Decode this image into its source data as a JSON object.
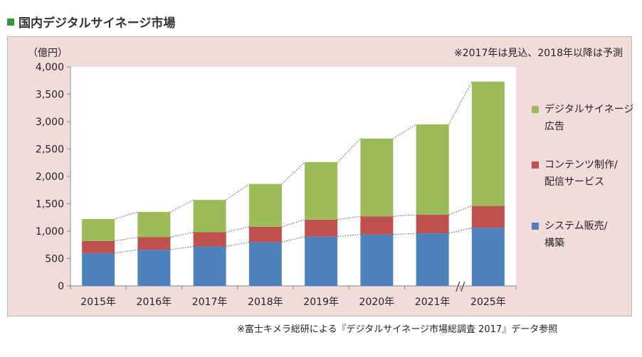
{
  "title": "国内デジタルサイネージ市場",
  "footnote": "※富士キメラ総研による『デジタルサイネージ市場総調査 2017』データ参照",
  "colors": {
    "title_square": "#2e9b3e",
    "panel_bg": "#f2dcdb",
    "plot_bg": "#ffffff",
    "series": [
      "#4f81bd",
      "#c0504d",
      "#9bbb59"
    ]
  },
  "chart_data": {
    "type": "bar",
    "stacked": true,
    "title": "",
    "unit_label": "（億円）",
    "note": "※2017年は見込、2018年以降は予測",
    "categories": [
      "2015年",
      "2016年",
      "2017年",
      "2018年",
      "2019年",
      "2020年",
      "2021年",
      "2025年"
    ],
    "axis_break_between": [
      "2021年",
      "2025年"
    ],
    "ylim": [
      0,
      4000
    ],
    "yticks": [
      0,
      500,
      1000,
      1500,
      2000,
      2500,
      3000,
      3500,
      4000
    ],
    "ytick_labels": [
      "0",
      "500",
      "1,000",
      "1,500",
      "2,000",
      "2,500",
      "3,000",
      "3,500",
      "4,000"
    ],
    "grid": false,
    "legend_position": "right",
    "series": [
      {
        "name_lines": [
          "システム販売/",
          "構築"
        ],
        "color": "#4f81bd",
        "values": [
          600,
          660,
          720,
          800,
          900,
          940,
          960,
          1060
        ]
      },
      {
        "name_lines": [
          "コンテンツ制作/",
          "配信サービス"
        ],
        "color": "#c0504d",
        "values": [
          220,
          230,
          260,
          280,
          310,
          330,
          340,
          400
        ]
      },
      {
        "name_lines": [
          "デジタルサイネージ",
          "広告"
        ],
        "color": "#9bbb59",
        "values": [
          400,
          460,
          590,
          780,
          1050,
          1420,
          1650,
          2270
        ]
      }
    ],
    "connector_lines": "dotted lines linking top of each stack segment between adjacent years"
  }
}
